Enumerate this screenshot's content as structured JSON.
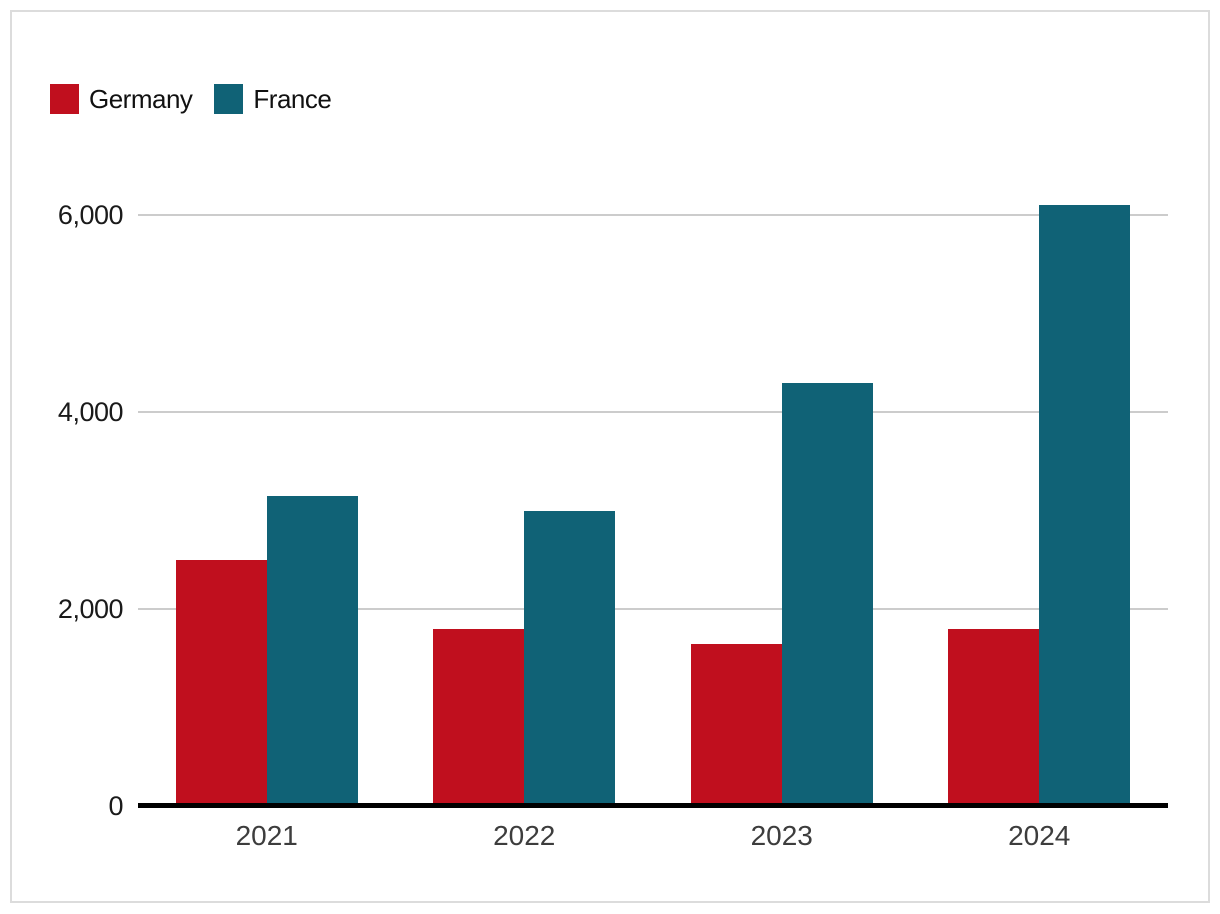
{
  "chart_data": {
    "type": "bar",
    "title": "",
    "xlabel": "",
    "ylabel": "",
    "categories": [
      "2021",
      "2022",
      "2023",
      "2024"
    ],
    "series": [
      {
        "name": "Germany",
        "color": "#c00f1e",
        "values": [
          2500,
          1800,
          1650,
          1800
        ]
      },
      {
        "name": "France",
        "color": "#106276",
        "values": [
          3150,
          3000,
          4300,
          6100
        ]
      }
    ],
    "ylim": [
      0,
      6500
    ],
    "y_ticks": [
      {
        "value": 0,
        "label": "0"
      },
      {
        "value": 2000,
        "label": "2,000"
      },
      {
        "value": 4000,
        "label": "4,000"
      },
      {
        "value": 6000,
        "label": "6,000"
      }
    ],
    "grid": "horizontal",
    "legend_position": "top-left"
  },
  "colors": {
    "germany": "#c00f1e",
    "france": "#106276",
    "gridline": "#cccccc",
    "axis": "#000000",
    "card_border": "#dcdcdc",
    "tick_text": "#1a1a1a",
    "category_text": "#3d3d3d"
  }
}
